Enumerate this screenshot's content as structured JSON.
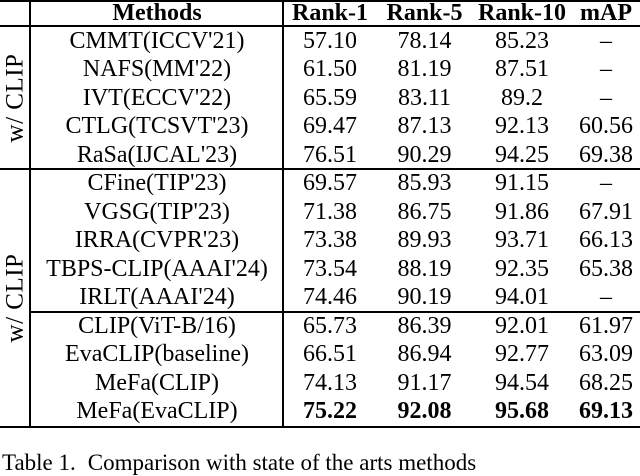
{
  "table": {
    "header": {
      "methods": "Methods",
      "rank1": "Rank-1",
      "rank5": "Rank-5",
      "rank10": "Rank-10",
      "map": "mAP"
    },
    "group_labels": {
      "group1": "w/ CLIP",
      "group2": "w/ CLIP"
    },
    "rows": [
      {
        "method": "CMMT(ICCV'21)",
        "rank1": "57.10",
        "rank5": "78.14",
        "rank10": "85.23",
        "map": "–"
      },
      {
        "method": "NAFS(MM'22)",
        "rank1": "61.50",
        "rank5": "81.19",
        "rank10": "87.51",
        "map": "–"
      },
      {
        "method": "IVT(ECCV'22)",
        "rank1": "65.59",
        "rank5": "83.11",
        "rank10": "89.2",
        "map": "–"
      },
      {
        "method": "CTLG(TCSVT'23)",
        "rank1": "69.47",
        "rank5": "87.13",
        "rank10": "92.13",
        "map": "60.56"
      },
      {
        "method": "RaSa(IJCAL'23)",
        "rank1": "76.51",
        "rank5": "90.29",
        "rank10": "94.25",
        "map": "69.38"
      },
      {
        "method": "CFine(TIP'23)",
        "rank1": "69.57",
        "rank5": "85.93",
        "rank10": "91.15",
        "map": "–"
      },
      {
        "method": "VGSG(TIP'23)",
        "rank1": "71.38",
        "rank5": "86.75",
        "rank10": "91.86",
        "map": "67.91"
      },
      {
        "method": "IRRA(CVPR'23)",
        "rank1": "73.38",
        "rank5": "89.93",
        "rank10": "93.71",
        "map": "66.13"
      },
      {
        "method": "TBPS-CLIP(AAAI'24)",
        "rank1": "73.54",
        "rank5": "88.19",
        "rank10": "92.35",
        "map": "65.38"
      },
      {
        "method": "IRLT(AAAI'24)",
        "rank1": "74.46",
        "rank5": "90.19",
        "rank10": "94.01",
        "map": "–"
      },
      {
        "method": "CLIP(ViT-B/16)",
        "rank1": "65.73",
        "rank5": "86.39",
        "rank10": "92.01",
        "map": "61.97"
      },
      {
        "method": "EvaCLIP(baseline)",
        "rank1": "66.51",
        "rank5": "86.94",
        "rank10": "92.77",
        "map": "63.09"
      },
      {
        "method": "MeFa(CLIP)",
        "rank1": "74.13",
        "rank5": "91.17",
        "rank10": "94.54",
        "map": "68.25"
      },
      {
        "method": "MeFa(EvaCLIP)",
        "rank1": "75.22",
        "rank5": "92.08",
        "rank10": "95.68",
        "map": "69.13"
      }
    ]
  },
  "caption": {
    "prefix": "Table 1.",
    "text": "Comparison with state of the arts methods"
  }
}
